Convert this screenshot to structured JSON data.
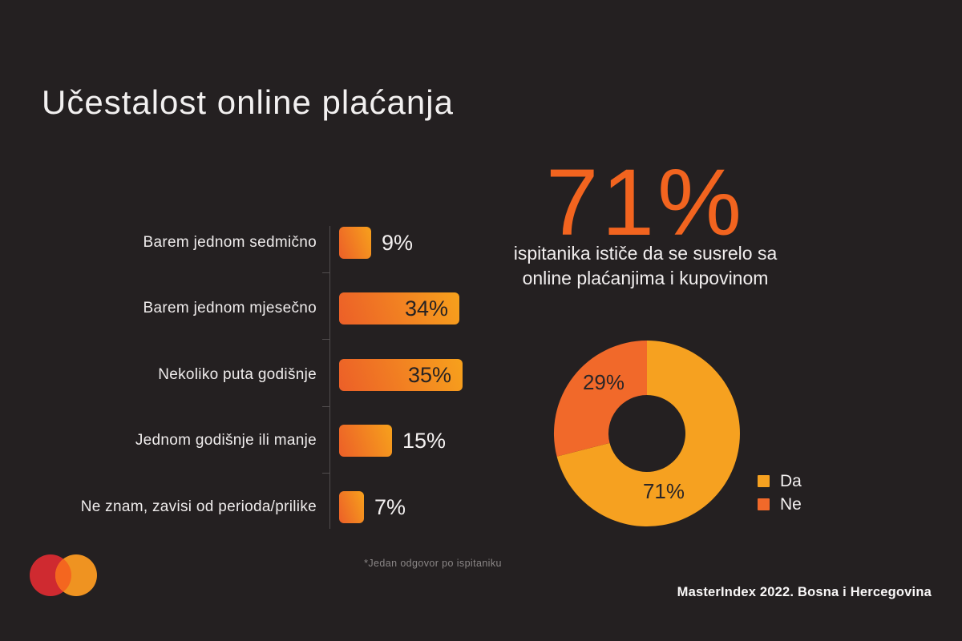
{
  "title": "Učestalost online plaćanja",
  "stat": {
    "value": "71%",
    "description_line1": "ispitanika ističe da se susrelo sa",
    "description_line2": "online plaćanjima i kupovinom"
  },
  "chart_data": [
    {
      "type": "bar",
      "orientation": "horizontal",
      "title": "Učestalost online plaćanja",
      "categories": [
        "Barem jednom sedmično",
        "Barem jednom mjesečno",
        "Nekoliko puta godišnje",
        "Jednom godišnje ili manje",
        "Ne znam, zavisi od perioda/prilike"
      ],
      "values": [
        9,
        34,
        35,
        15,
        7
      ],
      "unit": "%",
      "value_labels": [
        "9%",
        "34%",
        "35%",
        "15%",
        "7%"
      ],
      "xlim": [
        0,
        40
      ],
      "grid": false,
      "bar_gradient": [
        "#ec5f28",
        "#f7a11c"
      ]
    },
    {
      "type": "pie",
      "subtype": "donut",
      "start_angle_deg": 0,
      "direction": "clockwise",
      "segments": [
        {
          "label": "Da",
          "value": 71,
          "display": "71%",
          "color": "#f6a120"
        },
        {
          "label": "Ne",
          "value": 29,
          "display": "29%",
          "color": "#f1692a"
        }
      ],
      "legend_position": "right"
    }
  ],
  "legend": {
    "items": [
      {
        "label": "Da"
      },
      {
        "label": "Ne"
      }
    ]
  },
  "footnote": "*Jedan odgovor po ispitaniku",
  "attribution": "MasterIndex 2022. Bosna i Hercegovina",
  "logo": {
    "name": "mastercard-logo",
    "red": "#cf2a30",
    "orange": "#ef9321",
    "overlap": "#f4661f"
  },
  "colors": {
    "background": "#242021",
    "accent_orange": "#f2641f",
    "bar_text_dark": "#262223",
    "text_light": "#f2efef",
    "muted_text": "#8a8686",
    "axis": "#514d4e"
  }
}
